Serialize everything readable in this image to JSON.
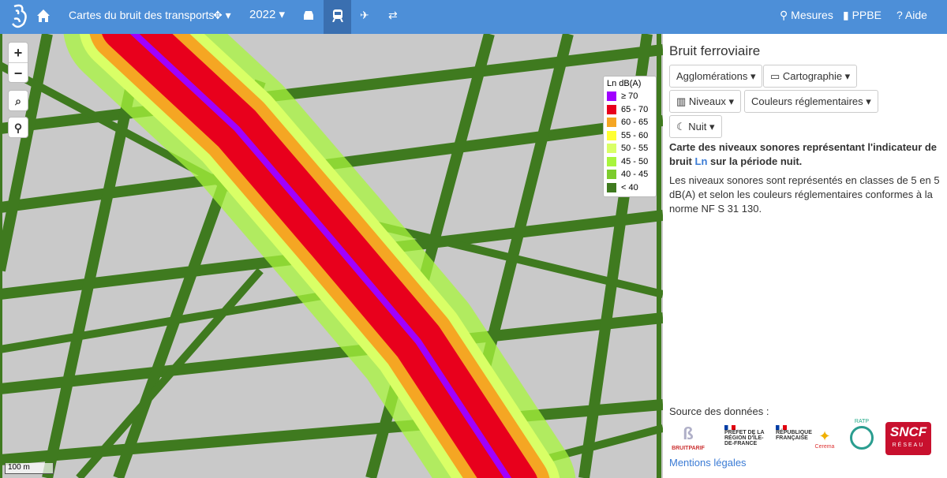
{
  "navbar": {
    "title": "Cartes du bruit des transports",
    "year": "2022",
    "links": [
      "Mesures",
      "PPBE",
      "Aide"
    ]
  },
  "map": {
    "zoom_in": "+",
    "zoom_out": "−",
    "scale": "100 m",
    "legend": {
      "title": "Ln dB(A)",
      "items": [
        {
          "label": "≥ 70",
          "color": "#a000ff"
        },
        {
          "label": "65 - 70",
          "color": "#e8001c"
        },
        {
          "label": "60 - 65",
          "color": "#f5a623"
        },
        {
          "label": "55 - 60",
          "color": "#ffff33"
        },
        {
          "label": "50 - 55",
          "color": "#d9ff66"
        },
        {
          "label": "45 - 50",
          "color": "#a8f53c"
        },
        {
          "label": "40 - 45",
          "color": "#7ccc2c"
        },
        {
          "label": "< 40",
          "color": "#3f7a1f"
        }
      ]
    }
  },
  "panel": {
    "title": "Bruit ferroviaire",
    "buttons": [
      "Agglomérations",
      "Cartographie",
      "Niveaux",
      "Couleurs réglementaires",
      "Nuit"
    ],
    "lead": {
      "before": "Carte des niveaux sonores représentant l'indicateur de bruit ",
      "link": "Ln",
      "after": " sur la période nuit."
    },
    "text": "Les niveaux sonores sont représentés en classes de 5 en 5 dB(A) et selon les couleurs réglementaires conformes à la norme NF S 31 130.",
    "source": "Source des données :",
    "logos": [
      "BRUITPARIF",
      "PRÉFET DE LA RÉGION D'ÎLE-DE-FRANCE",
      "RÉPUBLIQUE FRANÇAISE",
      "Cerema",
      "RATP",
      "SNCF",
      "RÉSEAU"
    ],
    "legal": "Mentions légales"
  }
}
